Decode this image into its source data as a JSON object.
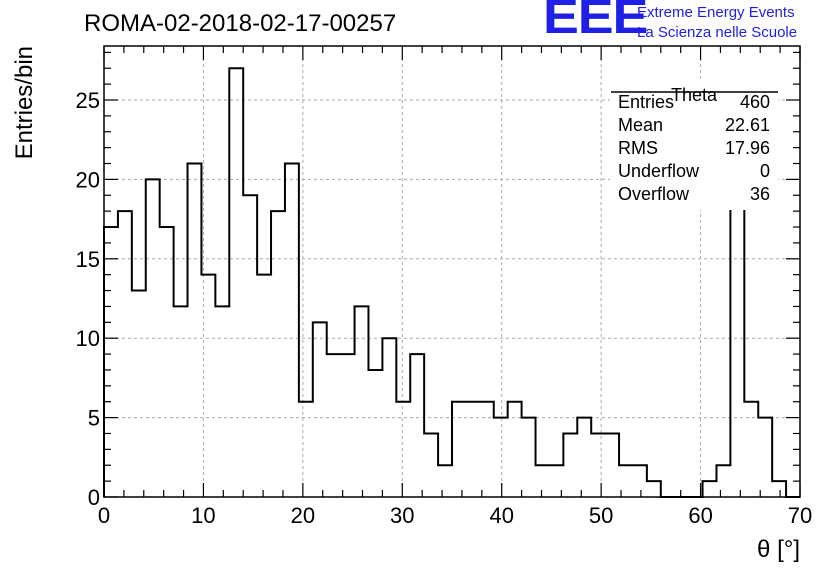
{
  "header": {
    "title": "ROMA-02-2018-02-17-00257",
    "logo_text": "EEE",
    "logo_line1": "Extreme Energy Events",
    "logo_line2": "La Scienza nelle Scuole"
  },
  "colors": {
    "logo": "#1f1fe6",
    "grid": "#aaaaaa",
    "line": "#000000"
  },
  "stats_box": {
    "title": "Theta",
    "rows": [
      {
        "label": "Entries",
        "value": "460"
      },
      {
        "label": "Mean",
        "value": "22.61"
      },
      {
        "label": "RMS",
        "value": "17.96"
      },
      {
        "label": "Underflow",
        "value": "0"
      },
      {
        "label": "Overflow",
        "value": "36"
      }
    ]
  },
  "chart_data": {
    "type": "histogram",
    "title": "ROMA-02-2018-02-17-00257",
    "xlabel": "θ [°]",
    "ylabel": "Entries/bin",
    "xlim": [
      0,
      70
    ],
    "ylim": [
      0,
      28.4
    ],
    "bin_width": 1.4,
    "xticks": [
      0,
      10,
      20,
      30,
      40,
      50,
      60,
      70
    ],
    "yticks": [
      0,
      5,
      10,
      15,
      20,
      25
    ],
    "grid": true,
    "bin_edges": [
      0,
      1.4,
      2.8,
      4.2,
      5.6,
      7.0,
      8.4,
      9.8,
      11.2,
      12.6,
      14.0,
      15.4,
      16.8,
      18.2,
      19.6,
      21.0,
      22.4,
      23.8,
      25.2,
      26.6,
      28.0,
      29.4,
      30.8,
      32.2,
      33.6,
      35.0,
      36.4,
      37.8,
      39.2,
      40.6,
      42.0,
      43.4,
      44.8,
      46.2,
      47.6,
      49.0,
      50.4,
      51.8,
      53.2,
      54.6,
      56.0,
      57.4,
      58.8,
      60.2,
      61.6,
      63.0,
      64.4,
      65.8,
      67.2,
      68.6,
      70.0
    ],
    "counts": [
      17,
      18,
      13,
      20,
      17,
      12,
      21,
      14,
      12,
      27,
      19,
      14,
      18,
      21,
      6,
      11,
      9,
      9,
      12,
      8,
      10,
      6,
      9,
      4,
      2,
      6,
      6,
      6,
      5,
      6,
      5,
      2,
      2,
      4,
      5,
      4,
      4,
      2,
      2,
      1,
      0,
      0,
      0,
      1,
      2,
      20,
      6,
      5,
      1,
      0
    ]
  }
}
